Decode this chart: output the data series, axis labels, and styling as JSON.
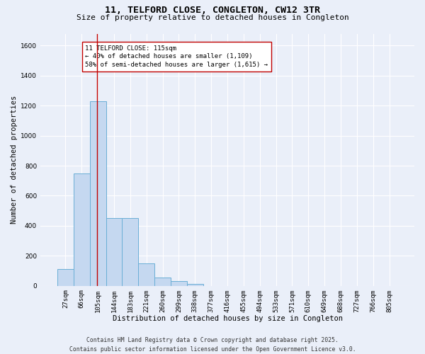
{
  "title_line1": "11, TELFORD CLOSE, CONGLETON, CW12 3TR",
  "title_line2": "Size of property relative to detached houses in Congleton",
  "xlabel": "Distribution of detached houses by size in Congleton",
  "ylabel": "Number of detached properties",
  "categories": [
    "27sqm",
    "66sqm",
    "105sqm",
    "144sqm",
    "183sqm",
    "221sqm",
    "260sqm",
    "299sqm",
    "338sqm",
    "377sqm",
    "416sqm",
    "455sqm",
    "494sqm",
    "533sqm",
    "571sqm",
    "610sqm",
    "649sqm",
    "688sqm",
    "727sqm",
    "766sqm",
    "805sqm"
  ],
  "values": [
    110,
    750,
    1230,
    450,
    450,
    150,
    55,
    30,
    15,
    0,
    0,
    0,
    0,
    0,
    0,
    0,
    0,
    0,
    0,
    0,
    0
  ],
  "bar_color": "#c5d8f0",
  "bar_edge_color": "#6aaed6",
  "vline_x_index": 1.97,
  "vline_color": "#c00000",
  "annotation_text": "11 TELFORD CLOSE: 115sqm\n← 40% of detached houses are smaller (1,109)\n58% of semi-detached houses are larger (1,615) →",
  "annotation_box_color": "white",
  "annotation_box_edge": "#c00000",
  "ylim": [
    0,
    1680
  ],
  "yticks": [
    0,
    200,
    400,
    600,
    800,
    1000,
    1200,
    1400,
    1600
  ],
  "background_color": "#eaeff9",
  "grid_color": "white",
  "footer_line1": "Contains HM Land Registry data © Crown copyright and database right 2025.",
  "footer_line2": "Contains public sector information licensed under the Open Government Licence v3.0.",
  "title_fontsize": 9.5,
  "subtitle_fontsize": 8.0,
  "axis_label_fontsize": 7.5,
  "tick_fontsize": 6.5,
  "annotation_fontsize": 6.5,
  "footer_fontsize": 5.8
}
